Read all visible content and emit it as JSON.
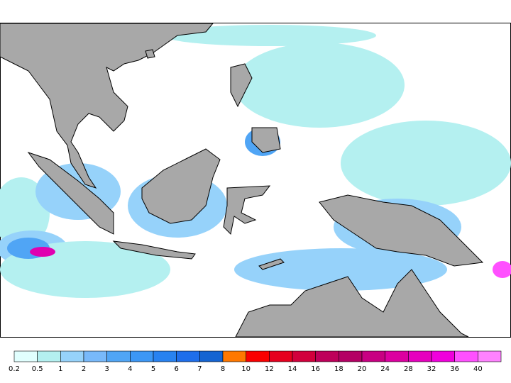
{
  "colorbar": {
    "ticks": [
      0.2,
      0.5,
      1,
      2,
      3,
      4,
      5,
      6,
      7,
      8,
      10,
      12,
      14,
      16,
      18,
      20,
      24,
      28,
      32,
      36,
      40
    ],
    "colors": [
      "#e1fffe",
      "#b4f0f0",
      "#96d2fa",
      "#78b9fa",
      "#50a5f5",
      "#3c97f5",
      "#2882f0",
      "#1e6eeb",
      "#1464d2",
      "#ff7800",
      "#fa0000",
      "#e6001e",
      "#d2003c",
      "#be005a",
      "#b40064",
      "#c80082",
      "#dc00a0",
      "#e600be",
      "#f000dc",
      "#ff50ff",
      "#ff82ff"
    ]
  }
}
